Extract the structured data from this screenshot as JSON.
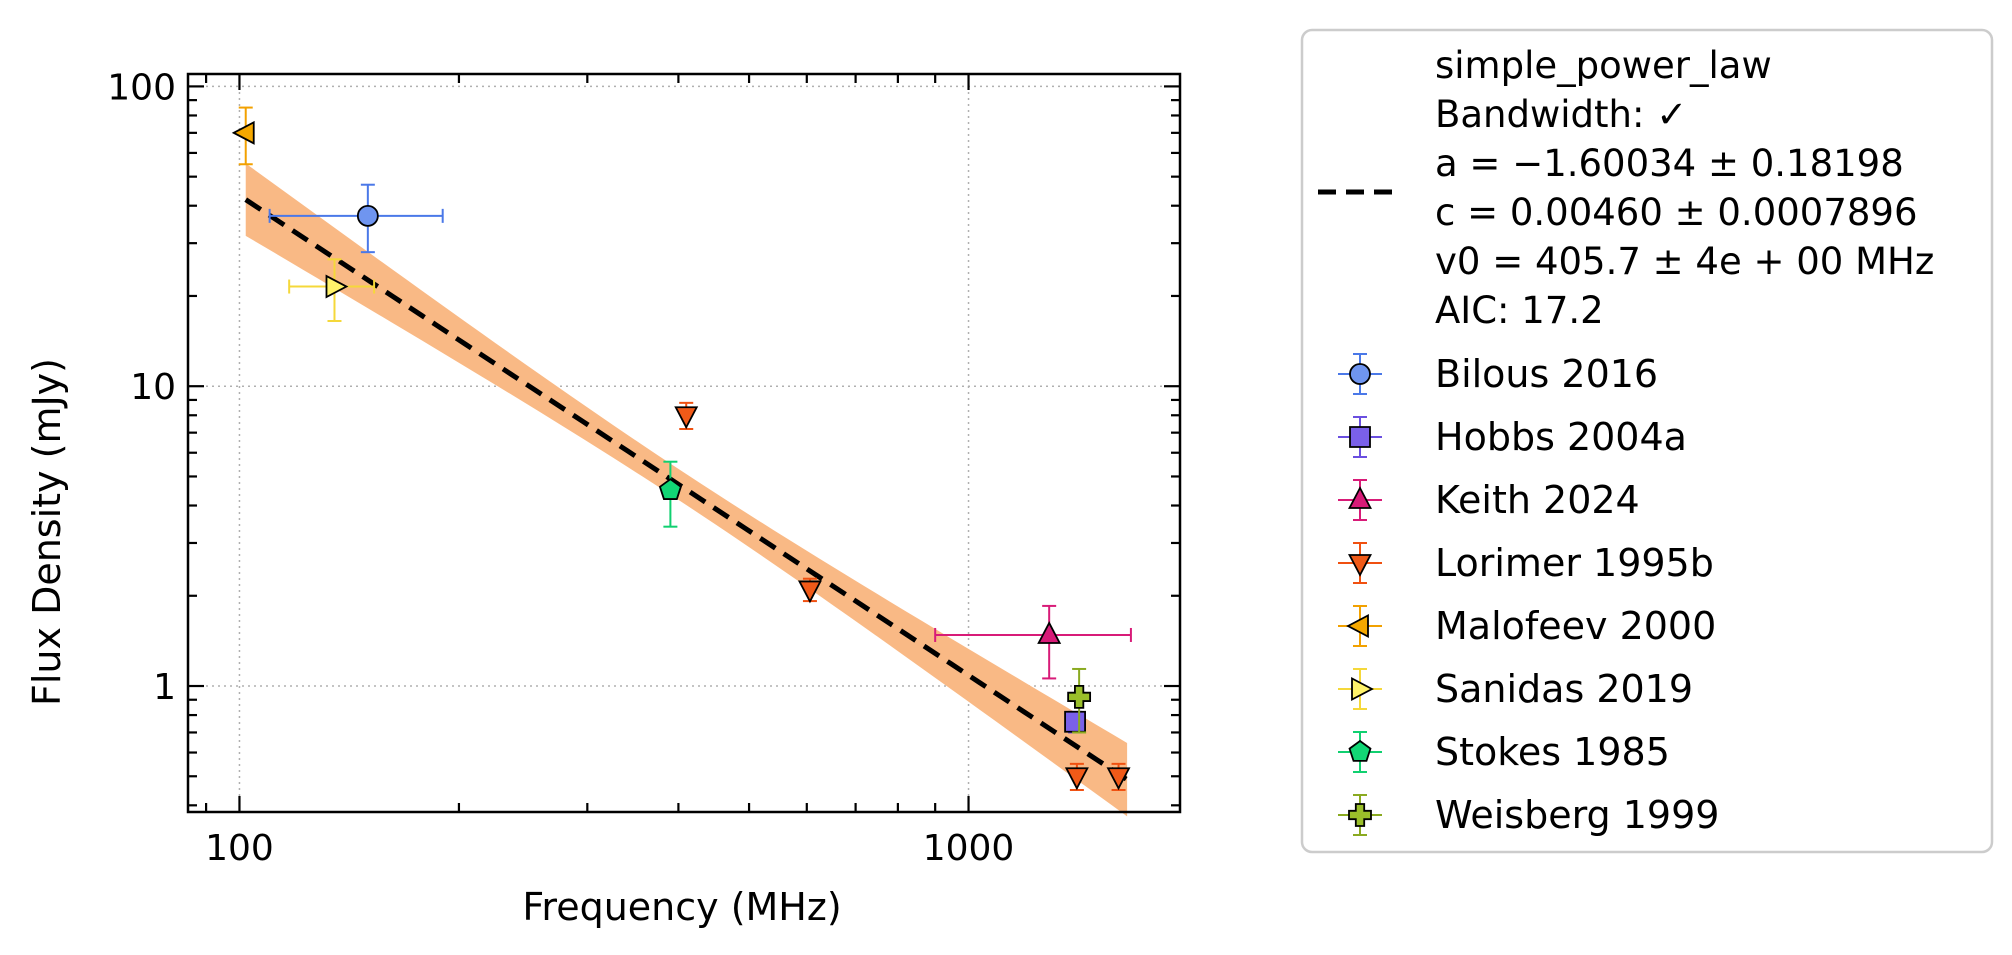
{
  "chart_data": {
    "type": "scatter",
    "title": "",
    "xlabel": "Frequency (MHz)",
    "ylabel": "Flux Density (mJy)",
    "xscale": "log",
    "yscale": "log",
    "xlim": [
      85,
      1950
    ],
    "ylim": [
      0.38,
      110
    ],
    "grid": true,
    "legend_position": "outside-right",
    "x_ticks": [
      {
        "value": 100,
        "label": "100"
      },
      {
        "value": 1000,
        "label": "1000"
      }
    ],
    "y_ticks": [
      {
        "value": 1,
        "label": "1"
      },
      {
        "value": 10,
        "label": "10"
      },
      {
        "value": 100,
        "label": "100"
      }
    ],
    "fit": {
      "model": "simple_power_law",
      "lines": [
        "simple_power_law",
        "Bandwidth: ✓",
        "a = −1.60034 ± 0.18198",
        "c = 0.00460 ± 0.0007896",
        "v0 = 405.7 ± 4e + 00 MHz",
        "AIC: 17.2"
      ],
      "a": -1.60034,
      "c": 0.0046,
      "v0_mhz": 405.7,
      "x_range": [
        102,
        1650
      ],
      "line_color": "#000000",
      "band_color": "#f9b985"
    },
    "series": [
      {
        "name": "Bilous 2016",
        "marker": "circle",
        "color": "#4a78e8",
        "fill": "#6f95f0",
        "points": [
          {
            "x": 150,
            "y": 37,
            "xerr": [
              40,
              40
            ],
            "yerr": [
              9,
              10
            ]
          }
        ]
      },
      {
        "name": "Hobbs 2004a",
        "marker": "square",
        "color": "#6a4fe0",
        "fill": "#7a60ea",
        "points": [
          {
            "x": 1400,
            "y": 0.76,
            "xerr": [
              30,
              40
            ],
            "yerr": [
              0.06,
              0.06
            ]
          }
        ]
      },
      {
        "name": "Keith 2024",
        "marker": "triangle-up",
        "color": "#d81b78",
        "fill": "#d81b78",
        "points": [
          {
            "x": 1290,
            "y": 1.48,
            "xerr": [
              390,
              380
            ],
            "yerr": [
              0.42,
              0.37
            ]
          }
        ]
      },
      {
        "name": "Lorimer 1995b",
        "marker": "triangle-down",
        "color": "#f05010",
        "fill": "#f05a18",
        "points": [
          {
            "x": 410,
            "y": 8.0,
            "xerr": [
              0,
              0
            ],
            "yerr": [
              0.8,
              0.8
            ]
          },
          {
            "x": 606,
            "y": 2.1,
            "xerr": [
              0,
              0
            ],
            "yerr": [
              0.18,
              0.18
            ]
          },
          {
            "x": 1408,
            "y": 0.5,
            "xerr": [
              0,
              0
            ],
            "yerr": [
              0.05,
              0.05
            ]
          },
          {
            "x": 1606,
            "y": 0.5,
            "xerr": [
              0,
              0
            ],
            "yerr": [
              0.05,
              0.05
            ]
          }
        ]
      },
      {
        "name": "Malofeev 2000",
        "marker": "triangle-left",
        "color": "#f2a100",
        "fill": "#f5a800",
        "points": [
          {
            "x": 102,
            "y": 70,
            "xerr": [
              0,
              0
            ],
            "yerr": [
              15,
              15
            ]
          }
        ]
      },
      {
        "name": "Sanidas 2019",
        "marker": "triangle-right",
        "color": "#f5d83a",
        "fill": "#fff36a",
        "points": [
          {
            "x": 135,
            "y": 21.5,
            "xerr": [
              18,
              18
            ],
            "yerr": [
              5.0,
              5.0
            ]
          }
        ]
      },
      {
        "name": "Stokes 1985",
        "marker": "pentagon",
        "color": "#10d070",
        "fill": "#12d675",
        "points": [
          {
            "x": 390,
            "y": 4.5,
            "xerr": [
              0,
              0
            ],
            "yerr": [
              1.1,
              1.1
            ]
          }
        ]
      },
      {
        "name": "Weisberg 1999",
        "marker": "plus",
        "color": "#8aaa20",
        "fill": "#9abf2a",
        "points": [
          {
            "x": 1418,
            "y": 0.92,
            "xerr": [
              0,
              0
            ],
            "yerr": [
              0.22,
              0.22
            ]
          }
        ]
      }
    ]
  }
}
